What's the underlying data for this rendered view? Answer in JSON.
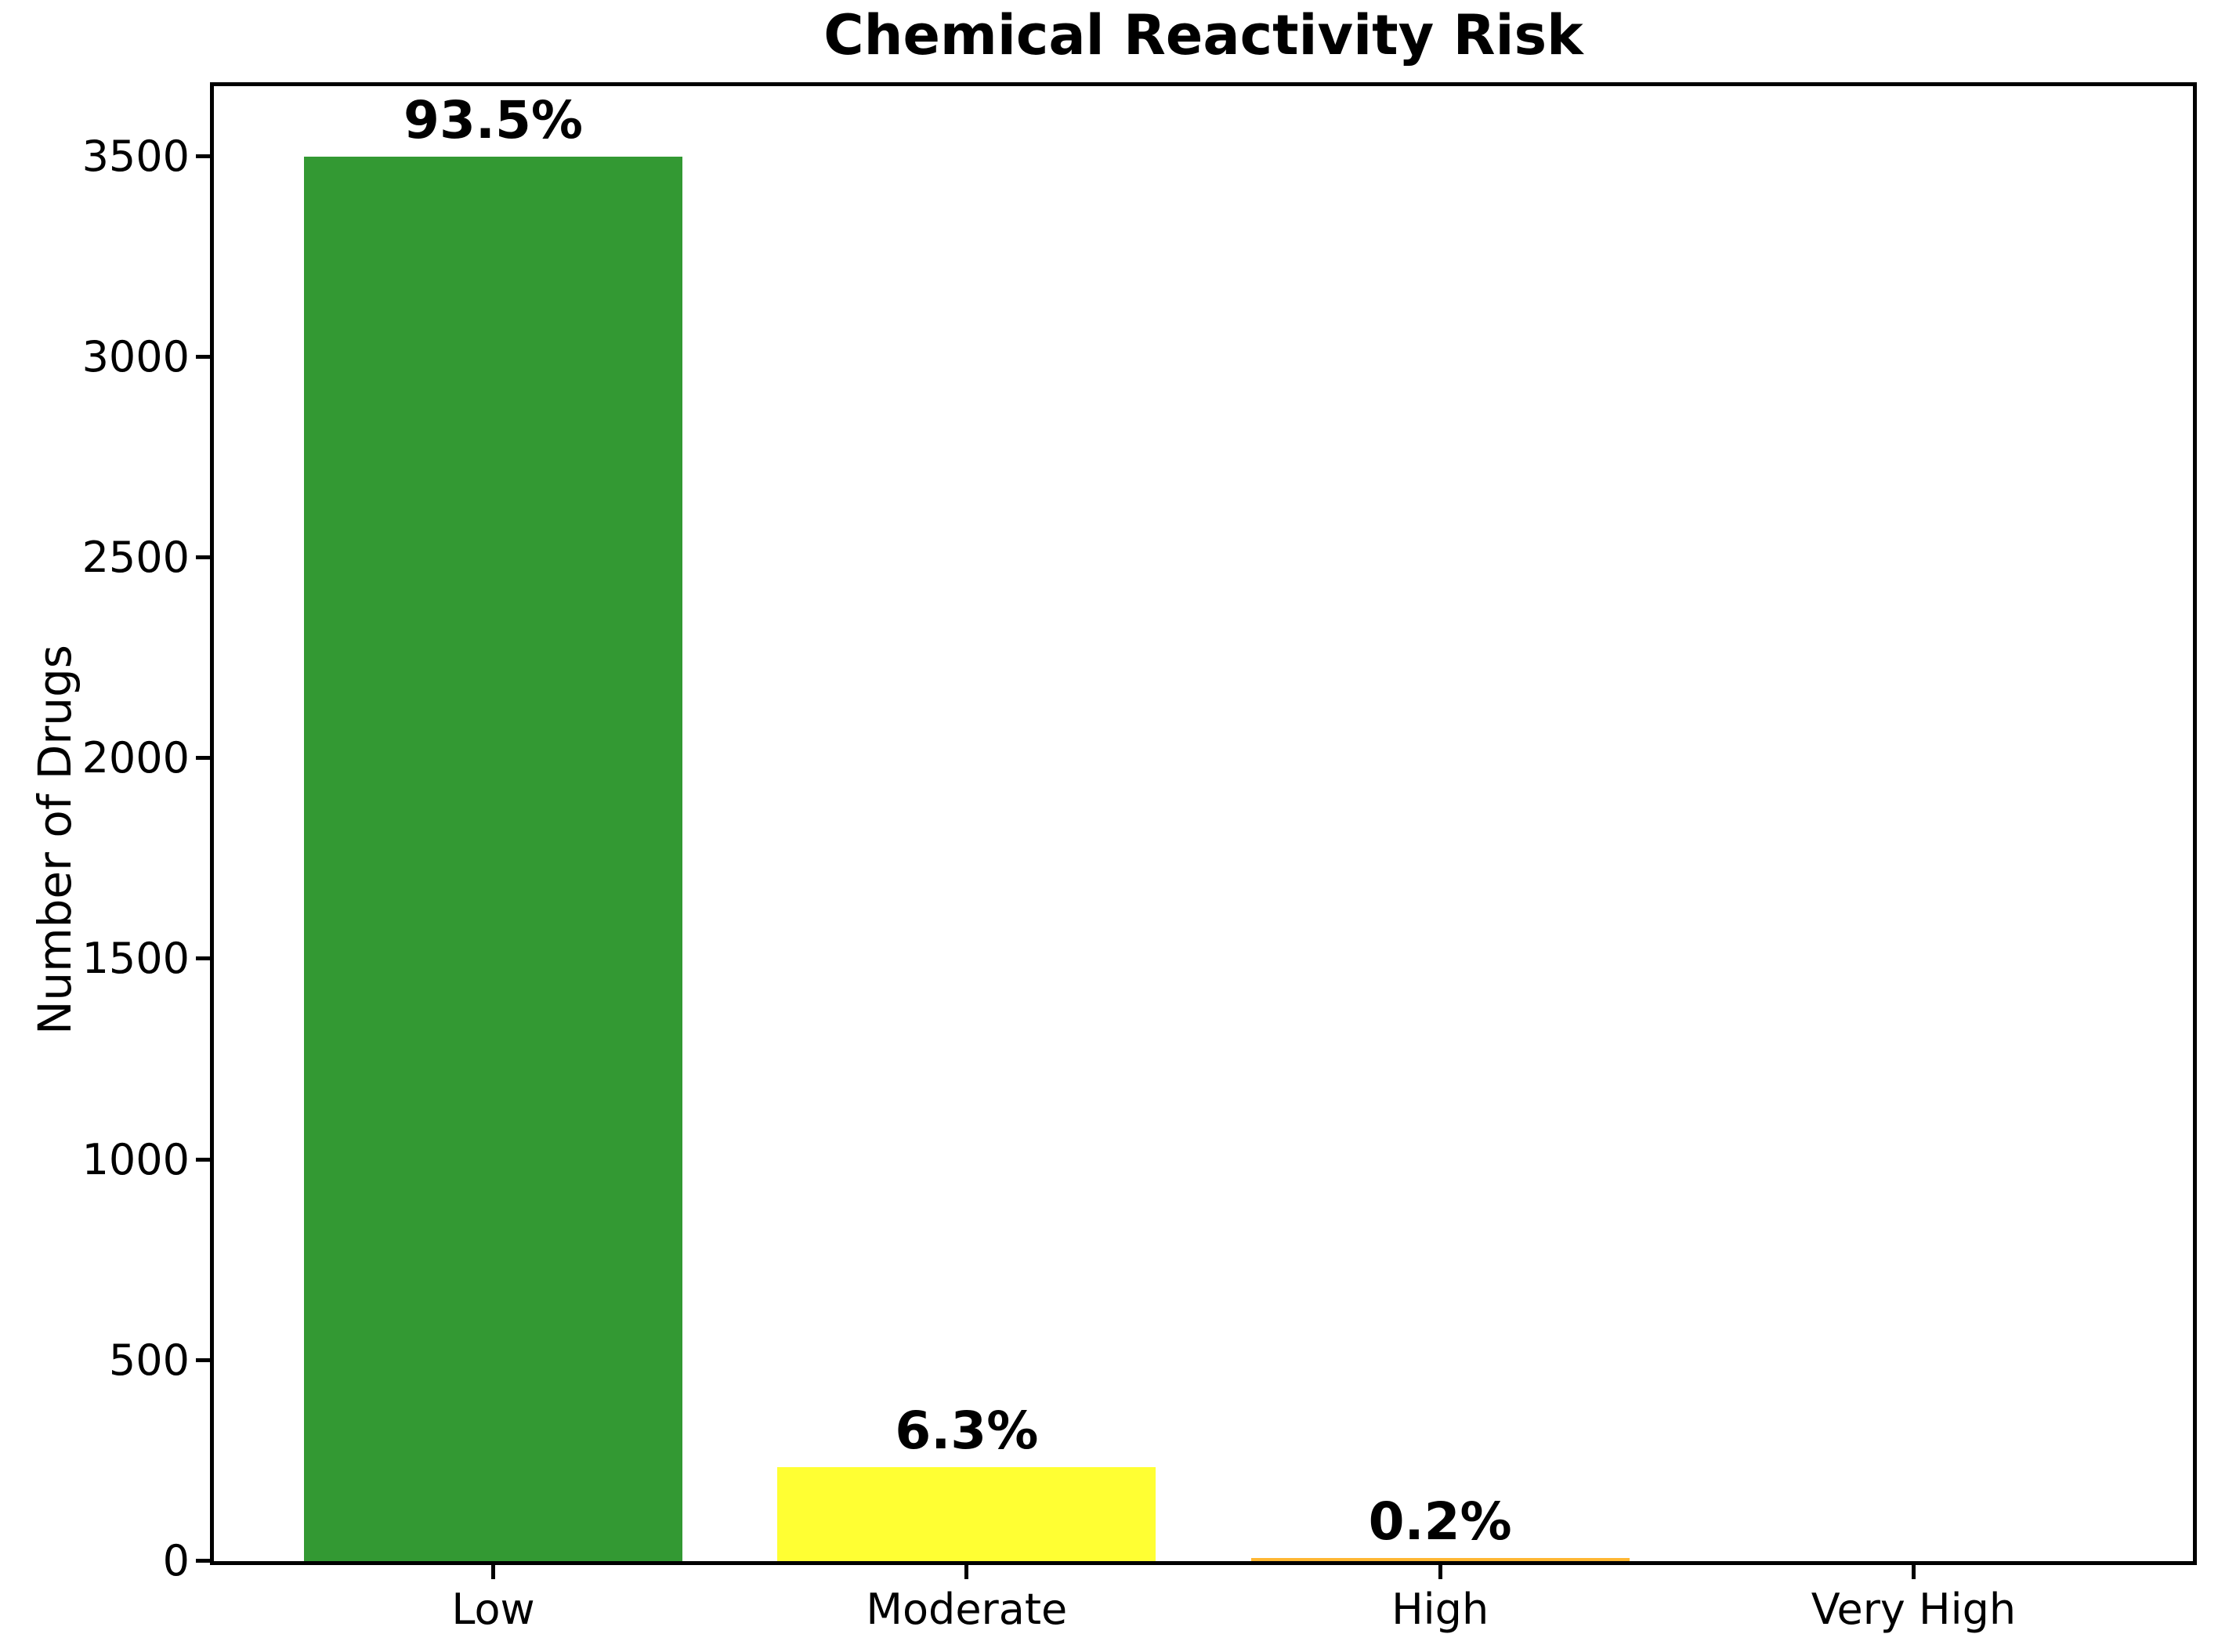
{
  "chart_data": {
    "type": "bar",
    "title": "Chemical Reactivity Risk",
    "xlabel": "",
    "ylabel": "Number of Drugs",
    "categories": [
      "Low",
      "Moderate",
      "High",
      "Very High"
    ],
    "values": [
      3500,
      235,
      8,
      0
    ],
    "bar_labels": [
      "93.5%",
      "6.3%",
      "0.2%",
      ""
    ],
    "bar_colors": [
      "#339933",
      "#ffff33",
      "#ffb733",
      "#ff3333"
    ],
    "axis_color": "#000000",
    "background_color": "#ffffff",
    "ylim": [
      0,
      3675
    ],
    "yticks": [
      0,
      500,
      1000,
      1500,
      2000,
      2500,
      3000,
      3500
    ],
    "grid": false,
    "legend": null,
    "bar_label_style": "bold percentage above bar"
  }
}
